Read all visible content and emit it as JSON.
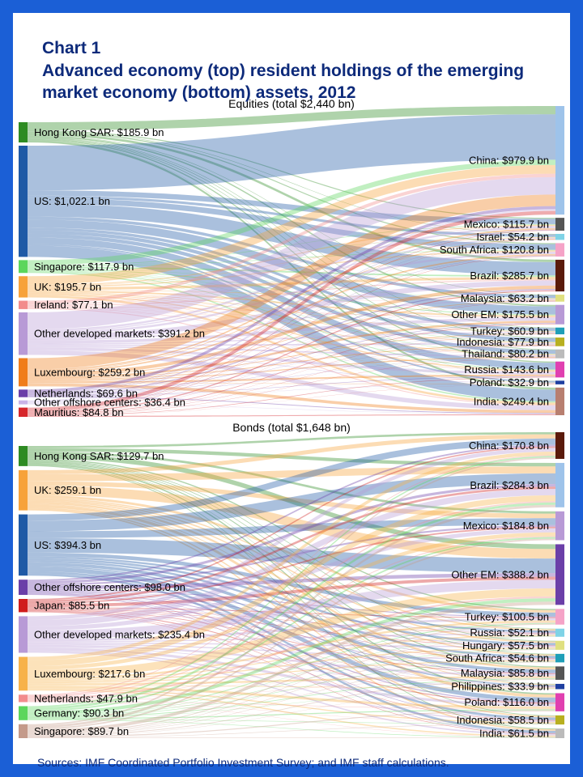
{
  "title": "Chart 1",
  "subtitle": "Advanced economy (top) resident holdings of the emerging market economy (bottom) assets, 2012",
  "source": "Sources: IMF Coordinated Portfolio Investment Survey; and IMF staff calculations.",
  "chart_data": [
    {
      "type": "sankey",
      "title": "Equities (total $2,440 bn)",
      "sources": [
        {
          "name": "Hong Kong SAR",
          "value": 185.9,
          "label": "Hong Kong SAR: $185.9 bn",
          "color": "#2e8b22"
        },
        {
          "name": "US",
          "value": 1022.1,
          "label": "US: $1,022.1 bn",
          "color": "#1f5aa6"
        },
        {
          "name": "Singapore",
          "value": 117.9,
          "label": "Singapore: $117.9 bn",
          "color": "#5cd65c"
        },
        {
          "name": "UK",
          "value": 195.7,
          "label": "UK: $195.7 bn",
          "color": "#f7a23a"
        },
        {
          "name": "Ireland",
          "value": 77.1,
          "label": "Ireland: $77.1 bn",
          "color": "#f28c8c"
        },
        {
          "name": "Other developed markets",
          "value": 391.2,
          "label": "Other developed markets: $391.2 bn",
          "color": "#b89ad6"
        },
        {
          "name": "Luxembourg",
          "value": 259.2,
          "label": "Luxembourg: $259.2 bn",
          "color": "#f07d1a"
        },
        {
          "name": "Netherlands",
          "value": 69.6,
          "label": "Netherlands: $69.6 bn",
          "color": "#6b3fa8"
        },
        {
          "name": "Other offshore centers",
          "value": 36.4,
          "label": "Other offshore centers: $36.4 bn",
          "color": "#c9b3e6"
        },
        {
          "name": "Mauritius",
          "value": 84.8,
          "label": "Mauritius: $84.8 bn",
          "color": "#d6262a"
        }
      ],
      "targets": [
        {
          "name": "China",
          "value": 979.9,
          "label": "China: $979.9 bn",
          "color": "#9ec3ea"
        },
        {
          "name": "Mexico",
          "value": 115.7,
          "label": "Mexico: $115.7 bn",
          "color": "#555555"
        },
        {
          "name": "Israel",
          "value": 54.2,
          "label": "Israel: $54.2 bn",
          "color": "#7fd3e6"
        },
        {
          "name": "South Africa",
          "value": 120.8,
          "label": "South Africa: $120.8 bn",
          "color": "#f5a3c7"
        },
        {
          "name": "Brazil",
          "value": 285.7,
          "label": "Brazil: $285.7 bn",
          "color": "#5a1a0a"
        },
        {
          "name": "Malaysia",
          "value": 63.2,
          "label": "Malaysia: $63.2 bn",
          "color": "#e0e080"
        },
        {
          "name": "Other EM",
          "value": 175.5,
          "label": "Other EM: $175.5 bn",
          "color": "#b89ad6"
        },
        {
          "name": "Turkey",
          "value": 60.9,
          "label": "Turkey: $60.9 bn",
          "color": "#1f9fb8"
        },
        {
          "name": "Indonesia",
          "value": 77.9,
          "label": "Indonesia: $77.9 bn",
          "color": "#b8b020"
        },
        {
          "name": "Thailand",
          "value": 80.2,
          "label": "Thailand: $80.2 bn",
          "color": "#bbbbbb"
        },
        {
          "name": "Russia",
          "value": 143.6,
          "label": "Russia: $143.6 bn",
          "color": "#e040b0"
        },
        {
          "name": "Poland",
          "value": 32.9,
          "label": "Poland: $32.9 bn",
          "color": "#1f3fa0"
        },
        {
          "name": "India",
          "value": 249.4,
          "label": "India: $249.4 bn",
          "color": "#b87f70"
        }
      ]
    },
    {
      "type": "sankey",
      "title": "Bonds (total $1,648 bn)",
      "sources": [
        {
          "name": "Hong Kong SAR",
          "value": 129.7,
          "label": "Hong Kong SAR: $129.7 bn",
          "color": "#2e8b22"
        },
        {
          "name": "UK",
          "value": 259.1,
          "label": "UK: $259.1 bn",
          "color": "#f7a23a"
        },
        {
          "name": "US",
          "value": 394.3,
          "label": "US: $394.3 bn",
          "color": "#1f5aa6"
        },
        {
          "name": "Other offshore centers",
          "value": 98.0,
          "label": "Other offshore centers: $98.0 bn",
          "color": "#6b3fa8"
        },
        {
          "name": "Japan",
          "value": 85.5,
          "label": "Japan: $85.5 bn",
          "color": "#d01c1c"
        },
        {
          "name": "Other developed markets",
          "value": 235.4,
          "label": "Other developed markets: $235.4 bn",
          "color": "#b89ad6"
        },
        {
          "name": "Luxembourg",
          "value": 217.6,
          "label": "Luxembourg: $217.6 bn",
          "color": "#f7b24a"
        },
        {
          "name": "Netherlands",
          "value": 47.9,
          "label": "Netherlands: $47.9 bn",
          "color": "#f28c8c"
        },
        {
          "name": "Germany",
          "value": 90.3,
          "label": "Germany: $90.3 bn",
          "color": "#5cd65c"
        },
        {
          "name": "Singapore",
          "value": 89.7,
          "label": "Singapore: $89.7 bn",
          "color": "#c49a8a"
        }
      ],
      "targets": [
        {
          "name": "China",
          "value": 170.8,
          "label": "China: $170.8 bn",
          "color": "#5a1a0a"
        },
        {
          "name": "Brazil",
          "value": 284.3,
          "label": "Brazil: $284.3 bn",
          "color": "#9ec3ea"
        },
        {
          "name": "Mexico",
          "value": 184.8,
          "label": "Mexico: $184.8 bn",
          "color": "#b89ad6"
        },
        {
          "name": "Other EM",
          "value": 388.2,
          "label": "Other EM: $388.2 bn",
          "color": "#6b3fa8"
        },
        {
          "name": "Turkey",
          "value": 100.5,
          "label": "Turkey: $100.5 bn",
          "color": "#f5a3c7"
        },
        {
          "name": "Russia",
          "value": 52.1,
          "label": "Russia: $52.1 bn",
          "color": "#7fd3e6"
        },
        {
          "name": "Hungary",
          "value": 57.5,
          "label": "Hungary: $57.5 bn",
          "color": "#e0e080"
        },
        {
          "name": "South Africa",
          "value": 54.6,
          "label": "South Africa: $54.6 bn",
          "color": "#1f9fb8"
        },
        {
          "name": "Malaysia",
          "value": 85.8,
          "label": "Malaysia: $85.8 bn",
          "color": "#555555"
        },
        {
          "name": "Philippines",
          "value": 33.9,
          "label": "Philippines: $33.9 bn",
          "color": "#1f3fa0"
        },
        {
          "name": "Poland",
          "value": 116.0,
          "label": "Poland: $116.0 bn",
          "color": "#e040b0"
        },
        {
          "name": "Indonesia",
          "value": 58.5,
          "label": "Indonesia: $58.5 bn",
          "color": "#b8b020"
        },
        {
          "name": "India",
          "value": 61.5,
          "label": "India: $61.5 bn",
          "color": "#bbbbbb"
        }
      ]
    }
  ]
}
